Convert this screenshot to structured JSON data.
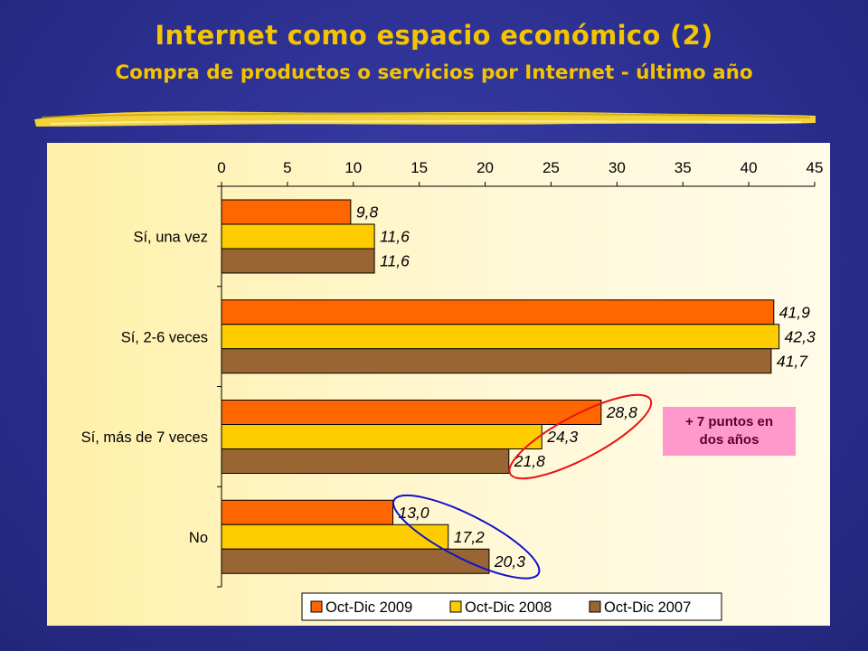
{
  "header": {
    "title": "Internet como espacio económico (2)",
    "subtitle": "Compra de productos o servicios por Internet - último año"
  },
  "annotation": {
    "text": "+ 7 puntos en dos años",
    "background": "#ff99cc"
  },
  "chart_data": {
    "type": "bar",
    "orientation": "horizontal",
    "categories": [
      "Sí, una vez",
      "Sí, 2-6 veces",
      "Sí, más de 7 veces",
      "No"
    ],
    "series": [
      {
        "name": "Oct-Dic 2009",
        "values": [
          9.8,
          41.9,
          28.8,
          13.0
        ],
        "labels": [
          "9,8",
          "41,9",
          "28,8",
          "13,0"
        ],
        "color": "#ff6600"
      },
      {
        "name": "Oct-Dic 2008",
        "values": [
          11.6,
          42.3,
          24.3,
          17.2
        ],
        "labels": [
          "11,6",
          "42,3",
          "24,3",
          "17,2"
        ],
        "color": "#ffcc00"
      },
      {
        "name": "Oct-Dic 2007",
        "values": [
          11.6,
          41.7,
          21.8,
          20.3
        ],
        "labels": [
          "11,6",
          "41,7",
          "21,8",
          "20,3"
        ],
        "color": "#996633"
      }
    ],
    "xlim": [
      0,
      45
    ],
    "xticks": [
      "0",
      "5",
      "10",
      "15",
      "20",
      "25",
      "30",
      "35",
      "40",
      "45"
    ],
    "axis_position": "top",
    "grid": false,
    "legend": "bottom",
    "highlights": [
      {
        "color": "#ee1111",
        "category_index": 2
      },
      {
        "color": "#1111cc",
        "category_index": 3
      }
    ]
  }
}
